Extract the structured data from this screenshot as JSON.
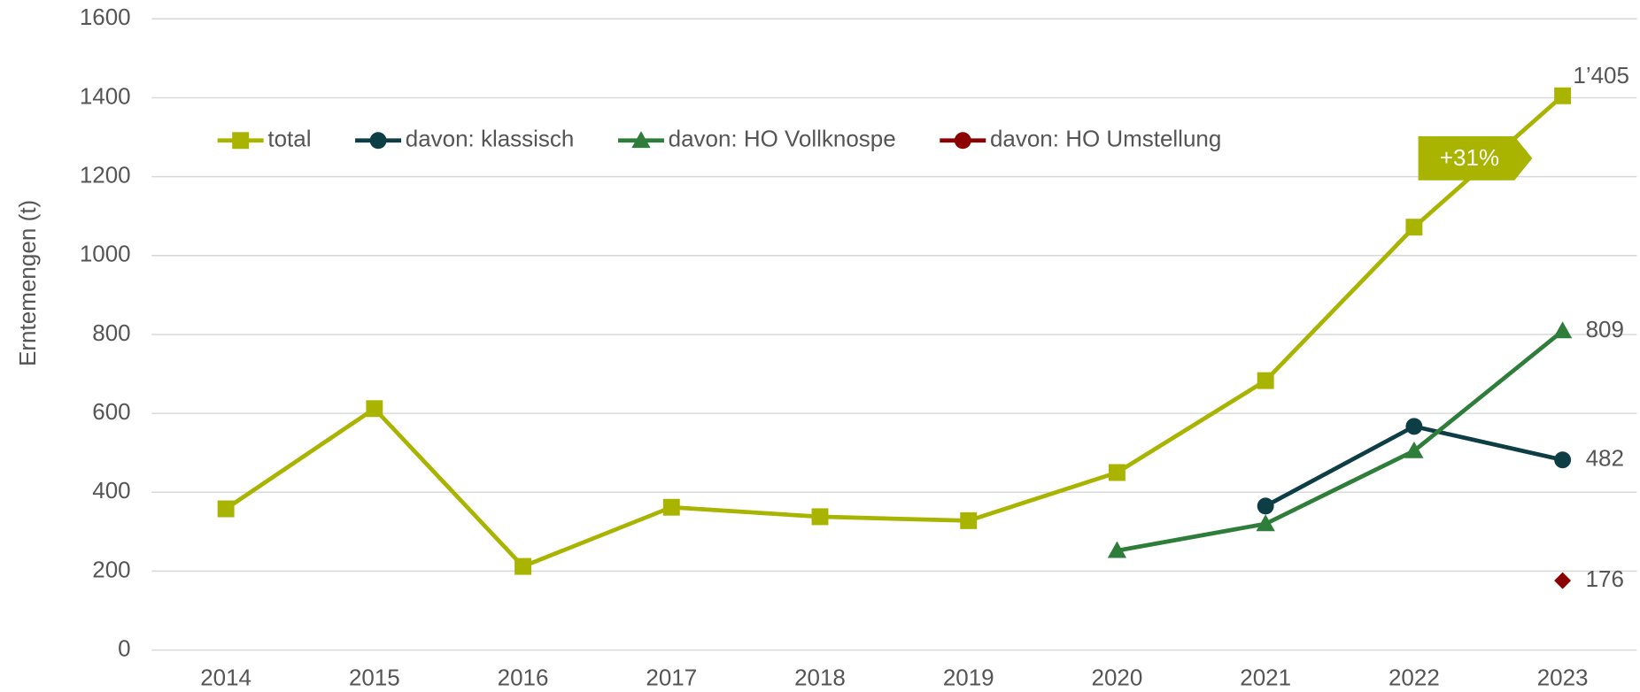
{
  "chart_data": {
    "type": "line",
    "y_label": "Erntemengen (t)",
    "categories": [
      "2014",
      "2015",
      "2016",
      "2017",
      "2018",
      "2019",
      "2020",
      "2021",
      "2022",
      "2023"
    ],
    "series": [
      {
        "name": "total",
        "color": "#a8b400",
        "marker": "square",
        "values": [
          358,
          612,
          212,
          362,
          338,
          328,
          450,
          683,
          1072,
          1405
        ],
        "value_labels": [
          null,
          null,
          null,
          null,
          null,
          null,
          null,
          null,
          null,
          "1’405"
        ]
      },
      {
        "name": "davon: klassisch",
        "color": "#0d3d45",
        "marker": "circle",
        "values": [
          null,
          null,
          null,
          null,
          null,
          null,
          null,
          365,
          567,
          482
        ],
        "value_labels": [
          null,
          null,
          null,
          null,
          null,
          null,
          null,
          null,
          null,
          "482"
        ]
      },
      {
        "name": "davon: HO Vollknospe",
        "color": "#2e7d3a",
        "marker": "triangle",
        "values": [
          null,
          null,
          null,
          null,
          null,
          null,
          252,
          320,
          505,
          809
        ],
        "value_labels": [
          null,
          null,
          null,
          null,
          null,
          null,
          null,
          null,
          null,
          "809"
        ]
      },
      {
        "name": "davon: HO Umstellung",
        "color": "#8b0000",
        "marker": "diamond",
        "legend_marker": "circle",
        "values": [
          null,
          null,
          null,
          null,
          null,
          null,
          null,
          null,
          null,
          176
        ],
        "value_labels": [
          null,
          null,
          null,
          null,
          null,
          null,
          null,
          null,
          null,
          "176"
        ]
      }
    ],
    "annotations": [
      {
        "text": "+31%"
      }
    ],
    "ylim": [
      0,
      1600
    ],
    "yticks": [
      0,
      200,
      400,
      600,
      800,
      1000,
      1200,
      1400,
      1600
    ],
    "grid": true,
    "legend": "top-left"
  }
}
